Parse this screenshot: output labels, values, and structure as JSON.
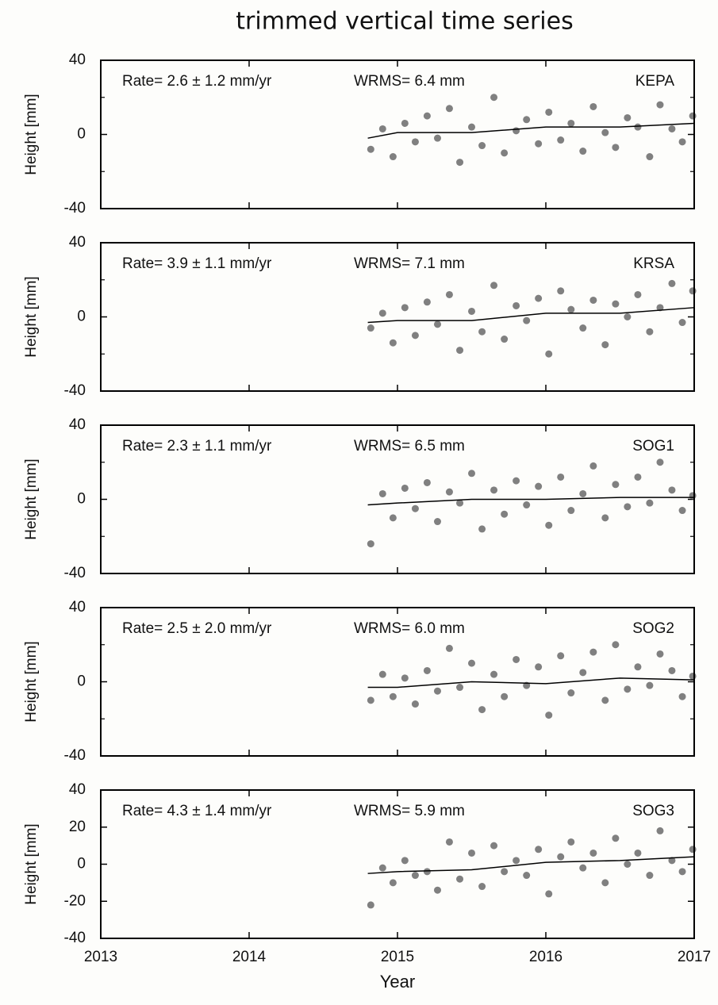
{
  "title": "trimmed vertical time series",
  "chart_data": [
    {
      "type": "scatter",
      "ylabel": "Height [mm]",
      "rate": "Rate= 2.6 ± 1.2 mm/yr",
      "wrms": "WRMS= 6.4 mm",
      "station": "KEPA",
      "xlim": [
        2013,
        2017
      ],
      "xticks": [
        2013,
        2014,
        2015,
        2016,
        2017
      ],
      "xtick_labels": false,
      "ylim": [
        -40,
        40
      ],
      "yticks": [
        -40,
        0,
        40
      ],
      "yminor": [
        -20,
        20
      ],
      "color": "#808080",
      "line_color": "#000000",
      "x": [
        2014.82,
        2014.9,
        2014.97,
        2015.05,
        2015.12,
        2015.2,
        2015.27,
        2015.35,
        2015.42,
        2015.5,
        2015.57,
        2015.65,
        2015.72,
        2015.8,
        2015.87,
        2015.95,
        2016.02,
        2016.1,
        2016.17,
        2016.25,
        2016.32,
        2016.4,
        2016.47,
        2016.55,
        2016.62,
        2016.7,
        2016.77,
        2016.85,
        2016.92,
        2016.99
      ],
      "values": [
        -8,
        3,
        -12,
        6,
        -4,
        10,
        -2,
        14,
        -15,
        4,
        -6,
        20,
        -10,
        2,
        8,
        -5,
        12,
        -3,
        6,
        -9,
        15,
        1,
        -7,
        9,
        4,
        -12,
        16,
        3,
        -4,
        10
      ],
      "trend": {
        "x": [
          2014.8,
          2015,
          2015.5,
          2016,
          2016.5,
          2017
        ],
        "values": [
          -2,
          1,
          1,
          4,
          4,
          6
        ]
      }
    },
    {
      "type": "scatter",
      "ylabel": "Height [mm]",
      "rate": "Rate= 3.9 ± 1.1 mm/yr",
      "wrms": "WRMS= 7.1 mm",
      "station": "KRSA",
      "xlim": [
        2013,
        2017
      ],
      "xticks": [
        2013,
        2014,
        2015,
        2016,
        2017
      ],
      "xtick_labels": false,
      "ylim": [
        -40,
        40
      ],
      "yticks": [
        -40,
        0,
        40
      ],
      "yminor": [
        -20,
        20
      ],
      "color": "#808080",
      "line_color": "#000000",
      "x": [
        2014.82,
        2014.9,
        2014.97,
        2015.05,
        2015.12,
        2015.2,
        2015.27,
        2015.35,
        2015.42,
        2015.5,
        2015.57,
        2015.65,
        2015.72,
        2015.8,
        2015.87,
        2015.95,
        2016.02,
        2016.1,
        2016.17,
        2016.25,
        2016.32,
        2016.4,
        2016.47,
        2016.55,
        2016.62,
        2016.7,
        2016.77,
        2016.85,
        2016.92,
        2016.99
      ],
      "values": [
        -6,
        2,
        -14,
        5,
        -10,
        8,
        -4,
        12,
        -18,
        3,
        -8,
        17,
        -12,
        6,
        -2,
        10,
        -20,
        14,
        4,
        -6,
        9,
        -15,
        7,
        0,
        12,
        -8,
        5,
        18,
        -3,
        14
      ],
      "trend": {
        "x": [
          2014.8,
          2015,
          2015.5,
          2016,
          2016.5,
          2017
        ],
        "values": [
          -3,
          -2,
          -2,
          2,
          2,
          5
        ]
      }
    },
    {
      "type": "scatter",
      "ylabel": "Height [mm]",
      "rate": "Rate= 2.3 ± 1.1 mm/yr",
      "wrms": "WRMS= 6.5 mm",
      "station": "SOG1",
      "xlim": [
        2013,
        2017
      ],
      "xticks": [
        2013,
        2014,
        2015,
        2016,
        2017
      ],
      "xtick_labels": false,
      "ylim": [
        -40,
        40
      ],
      "yticks": [
        -40,
        0,
        40
      ],
      "yminor": [
        -20,
        20
      ],
      "color": "#808080",
      "line_color": "#000000",
      "x": [
        2014.82,
        2014.9,
        2014.97,
        2015.05,
        2015.12,
        2015.2,
        2015.27,
        2015.35,
        2015.42,
        2015.5,
        2015.57,
        2015.65,
        2015.72,
        2015.8,
        2015.87,
        2015.95,
        2016.02,
        2016.1,
        2016.17,
        2016.25,
        2016.32,
        2016.4,
        2016.47,
        2016.55,
        2016.62,
        2016.7,
        2016.77,
        2016.85,
        2016.92,
        2016.99
      ],
      "values": [
        -24,
        3,
        -10,
        6,
        -5,
        9,
        -12,
        4,
        -2,
        14,
        -16,
        5,
        -8,
        10,
        -3,
        7,
        -14,
        12,
        -6,
        3,
        18,
        -10,
        8,
        -4,
        12,
        -2,
        20,
        5,
        -6,
        2
      ],
      "trend": {
        "x": [
          2014.8,
          2015,
          2015.5,
          2016,
          2016.5,
          2017
        ],
        "values": [
          -3,
          -2,
          0,
          0,
          1,
          1
        ]
      }
    },
    {
      "type": "scatter",
      "ylabel": "Height [mm]",
      "rate": "Rate= 2.5 ± 2.0 mm/yr",
      "wrms": "WRMS= 6.0 mm",
      "station": "SOG2",
      "xlim": [
        2013,
        2017
      ],
      "xticks": [
        2013,
        2014,
        2015,
        2016,
        2017
      ],
      "xtick_labels": false,
      "ylim": [
        -40,
        40
      ],
      "yticks": [
        -40,
        0,
        40
      ],
      "yminor": [
        -20,
        20
      ],
      "color": "#808080",
      "line_color": "#000000",
      "x": [
        2014.82,
        2014.9,
        2014.97,
        2015.05,
        2015.12,
        2015.2,
        2015.27,
        2015.35,
        2015.42,
        2015.5,
        2015.57,
        2015.65,
        2015.72,
        2015.8,
        2015.87,
        2015.95,
        2016.02,
        2016.1,
        2016.17,
        2016.25,
        2016.32,
        2016.4,
        2016.47,
        2016.55,
        2016.62,
        2016.7,
        2016.77,
        2016.85,
        2016.92,
        2016.99
      ],
      "values": [
        -10,
        4,
        -8,
        2,
        -12,
        6,
        -5,
        18,
        -3,
        10,
        -15,
        4,
        -8,
        12,
        -2,
        8,
        -18,
        14,
        -6,
        5,
        16,
        -10,
        20,
        -4,
        8,
        -2,
        15,
        6,
        -8,
        3
      ],
      "trend": {
        "x": [
          2014.8,
          2015,
          2015.5,
          2016,
          2016.5,
          2017
        ],
        "values": [
          -3,
          -3,
          0,
          -1,
          2,
          1
        ]
      }
    },
    {
      "type": "scatter",
      "ylabel": "Height [mm]",
      "xlabel": "Year",
      "rate": "Rate= 4.3 ± 1.4 mm/yr",
      "wrms": "WRMS= 5.9 mm",
      "station": "SOG3",
      "xlim": [
        2013,
        2017
      ],
      "xticks": [
        2013,
        2014,
        2015,
        2016,
        2017
      ],
      "xtick_labels": true,
      "ylim": [
        -40,
        40
      ],
      "yticks": [
        -40,
        -20,
        0,
        20,
        40
      ],
      "yminor": [],
      "color": "#808080",
      "line_color": "#000000",
      "x": [
        2014.82,
        2014.9,
        2014.97,
        2015.05,
        2015.12,
        2015.2,
        2015.27,
        2015.35,
        2015.42,
        2015.5,
        2015.57,
        2015.65,
        2015.72,
        2015.8,
        2015.87,
        2015.95,
        2016.02,
        2016.1,
        2016.17,
        2016.25,
        2016.32,
        2016.4,
        2016.47,
        2016.55,
        2016.62,
        2016.7,
        2016.77,
        2016.85,
        2016.92,
        2016.99
      ],
      "values": [
        -22,
        -2,
        -10,
        2,
        -6,
        -4,
        -14,
        12,
        -8,
        6,
        -12,
        10,
        -4,
        2,
        -6,
        8,
        -16,
        4,
        12,
        -2,
        6,
        -10,
        14,
        0,
        6,
        -6,
        18,
        2,
        -4,
        8
      ],
      "trend": {
        "x": [
          2014.8,
          2015,
          2015.5,
          2016,
          2016.5,
          2017
        ],
        "values": [
          -5,
          -4,
          -3,
          1,
          2,
          4
        ]
      }
    }
  ]
}
